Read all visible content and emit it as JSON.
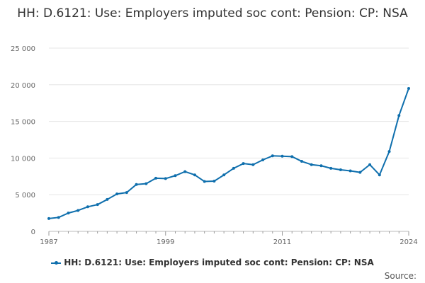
{
  "chart_data": {
    "type": "line",
    "title": "HH: D.6121: Use: Employers imputed soc cont: Pension: CP: NSA",
    "xlabel": "",
    "ylabel": "",
    "xlim": [
      1987,
      2024
    ],
    "ylim": [
      0,
      25000
    ],
    "y_ticks": [
      {
        "value": 0,
        "label": "0"
      },
      {
        "value": 5000,
        "label": "5 000"
      },
      {
        "value": 10000,
        "label": "10 000"
      },
      {
        "value": 15000,
        "label": "15 000"
      },
      {
        "value": 20000,
        "label": "20 000"
      },
      {
        "value": 25000,
        "label": "25 000"
      }
    ],
    "x_ticks": [
      {
        "value": 1987,
        "label": "1987"
      },
      {
        "value": 1999,
        "label": "1999"
      },
      {
        "value": 2011,
        "label": "2011"
      },
      {
        "value": 2024,
        "label": "2024"
      }
    ],
    "grid": true,
    "legend_position": "bottom",
    "series": [
      {
        "name": "HH: D.6121: Use: Employers imputed soc cont: Pension: CP: NSA",
        "color": "#0f6fad",
        "x": [
          1987,
          1988,
          1989,
          1990,
          1991,
          1992,
          1993,
          1994,
          1995,
          1996,
          1997,
          1998,
          1999,
          2000,
          2001,
          2002,
          2003,
          2004,
          2005,
          2006,
          2007,
          2008,
          2009,
          2010,
          2011,
          2012,
          2013,
          2014,
          2015,
          2016,
          2017,
          2018,
          2019,
          2020,
          2021,
          2022,
          2023,
          2024
        ],
        "y": [
          1750,
          1900,
          2500,
          2850,
          3350,
          3650,
          4350,
          5100,
          5300,
          6400,
          6500,
          7250,
          7200,
          7600,
          8150,
          7700,
          6800,
          6850,
          7700,
          8600,
          9250,
          9100,
          9750,
          10300,
          10250,
          10200,
          9550,
          9100,
          8950,
          8600,
          8400,
          8250,
          8050,
          9100,
          7700,
          10900,
          15800,
          19500
        ]
      }
    ],
    "legend": {
      "label": "HH: D.6121: Use: Employers imputed soc cont: Pension: CP: NSA"
    },
    "source_label": "Source:"
  }
}
